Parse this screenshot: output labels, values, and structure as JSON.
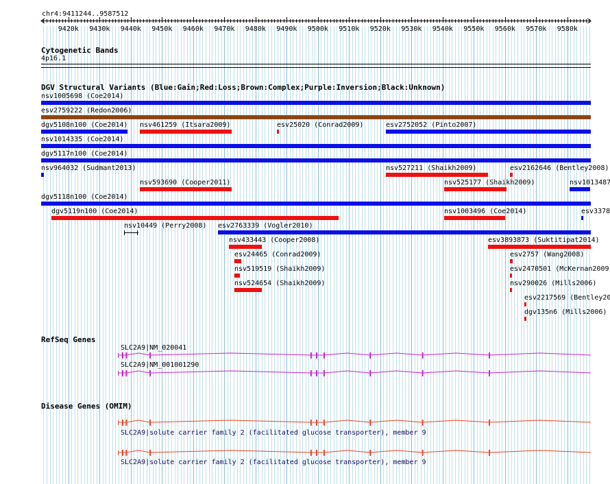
{
  "ruler": {
    "position": "chr4:9411244..9587512",
    "ticks": [
      "9420k",
      "9430k",
      "9440k",
      "9450k",
      "9460k",
      "9470k",
      "9480k",
      "9490k",
      "9500k",
      "9510k",
      "9520k",
      "9530k",
      "9540k",
      "9550k",
      "9560k",
      "9570k",
      "9580k"
    ]
  },
  "cyto": {
    "title": "Cytogenetic Bands",
    "band": "4p16.1"
  },
  "dgv": {
    "title": "DGV Structural Variants (Blue:Gain;Red:Loss;Brown:Complex;Purple:Inversion;Black:Unknown)",
    "colors": {
      "gain": "#0a10e6",
      "loss": "#ee1111",
      "complex": "#8b4513",
      "unknown": "#000000"
    },
    "features": [
      {
        "name": "nsv1005698 (Coe2014)",
        "start_kb": 9411.2,
        "end_kb": 9587.5,
        "type": "gain"
      },
      {
        "name": "esv2759222 (Redon2006)",
        "start_kb": 9411.2,
        "end_kb": 9587.5,
        "type": "complex"
      },
      {
        "name": "dgv5108n100 (Coe2014)",
        "start_kb": 9411.2,
        "end_kb": 9439.0,
        "type": "gain"
      },
      {
        "name": "nsv461259 (Itsara2009)",
        "start_kb": 9443.0,
        "end_kb": 9472.5,
        "type": "loss"
      },
      {
        "name": "esv25020 (Conrad2009)",
        "start_kb": 9486.8,
        "end_kb": 9487.5,
        "type": "loss"
      },
      {
        "name": "esv2752052 (Pinto2007)",
        "start_kb": 9521.8,
        "end_kb": 9587.5,
        "type": "gain"
      },
      {
        "name": "nsv1014335 (Coe2014)",
        "start_kb": 9411.2,
        "end_kb": 9587.5,
        "type": "gain"
      },
      {
        "name": "dgv5117n100 (Coe2014)",
        "start_kb": 9411.2,
        "end_kb": 9587.5,
        "type": "gain"
      },
      {
        "name": "nsv964032 (Sudmant2013)",
        "start_kb": 9411.2,
        "end_kb": 9412.0,
        "type": "gain"
      },
      {
        "name": "nsv593690 (Cooper2011)",
        "start_kb": 9443.0,
        "end_kb": 9472.5,
        "type": "loss"
      },
      {
        "name": "nsv527211 (Shaikh2009)",
        "start_kb": 9521.8,
        "end_kb": 9554.5,
        "type": "loss"
      },
      {
        "name": "esv2162646 (Bentley2008)",
        "start_kb": 9561.5,
        "end_kb": 9562.3,
        "type": "loss"
      },
      {
        "name": "dgv5118n100 (Coe2014)",
        "start_kb": 9411.2,
        "end_kb": 9587.5,
        "type": "gain"
      },
      {
        "name": "dgv5119n100 (Coe2014)",
        "start_kb": 9414.5,
        "end_kb": 9506.5,
        "type": "loss"
      },
      {
        "name": "nsv525177 (Shaikh2009)",
        "start_kb": 9540.5,
        "end_kb": 9560.5,
        "type": "loss"
      },
      {
        "name": "nsv1013487",
        "start_kb": 9580.8,
        "end_kb": 9587.5,
        "type": "gain"
      },
      {
        "name": "nsv10449 (Perry2008)",
        "start_kb": 9437.8,
        "end_kb": 9442.0,
        "type": "unknown"
      },
      {
        "name": "esv2763339 (Vogler2010)",
        "start_kb": 9468.0,
        "end_kb": 9587.5,
        "type": "gain"
      },
      {
        "name": "nsv433443 (Cooper2008)",
        "start_kb": 9471.5,
        "end_kb": 9482.0,
        "type": "loss"
      },
      {
        "name": "nsv1003496 (Coe2014)",
        "start_kb": 9540.5,
        "end_kb": 9560.0,
        "type": "loss"
      },
      {
        "name": "esv3378",
        "start_kb": 9584.5,
        "end_kb": 9585.0,
        "type": "gain"
      },
      {
        "name": "esv24465 (Conrad2009)",
        "start_kb": 9473.2,
        "end_kb": 9475.5,
        "type": "loss"
      },
      {
        "name": "esv3893873 (Suktitipat2014)",
        "start_kb": 9554.5,
        "end_kb": 9587.5,
        "type": "loss"
      },
      {
        "name": "nsv519519 (Shaikh2009)",
        "start_kb": 9473.2,
        "end_kb": 9475.0,
        "type": "loss"
      },
      {
        "name": "esv2757 (Wang2008)",
        "start_kb": 9561.5,
        "end_kb": 9562.3,
        "type": "loss"
      },
      {
        "name": "nsv524654 (Shaikh2009)",
        "start_kb": 9473.2,
        "end_kb": 9482.0,
        "type": "loss"
      },
      {
        "name": "esv2470501 (McKernan2009)",
        "start_kb": 9561.5,
        "end_kb": 9562.1,
        "type": "loss"
      },
      {
        "name": "nsv290026 (Mills2006)",
        "start_kb": 9561.5,
        "end_kb": 9561.9,
        "type": "loss"
      },
      {
        "name": "esv2217569 (Bentley200",
        "start_kb": 9566.3,
        "end_kb": 9567.0,
        "type": "loss"
      },
      {
        "name": "dgv135n6 (Mills2006)",
        "start_kb": 9566.3,
        "end_kb": 9566.8,
        "type": "loss"
      }
    ]
  },
  "refseq": {
    "title": "RefSeq Genes",
    "color": "#cc22cc",
    "genes": [
      {
        "name": "SLC2A9|NM_020041"
      },
      {
        "name": "SLC2A9|NM_001001290"
      }
    ]
  },
  "omim": {
    "title": "Disease Genes (OMIM)",
    "color": "#ee4422",
    "genes": [
      {
        "name": "SLC2A9|solute carrier family 2 (facilitated glucose transporter), member 9"
      },
      {
        "name": "SLC2A9|solute carrier family 2 (facilitated glucose transporter), member 9"
      }
    ]
  }
}
